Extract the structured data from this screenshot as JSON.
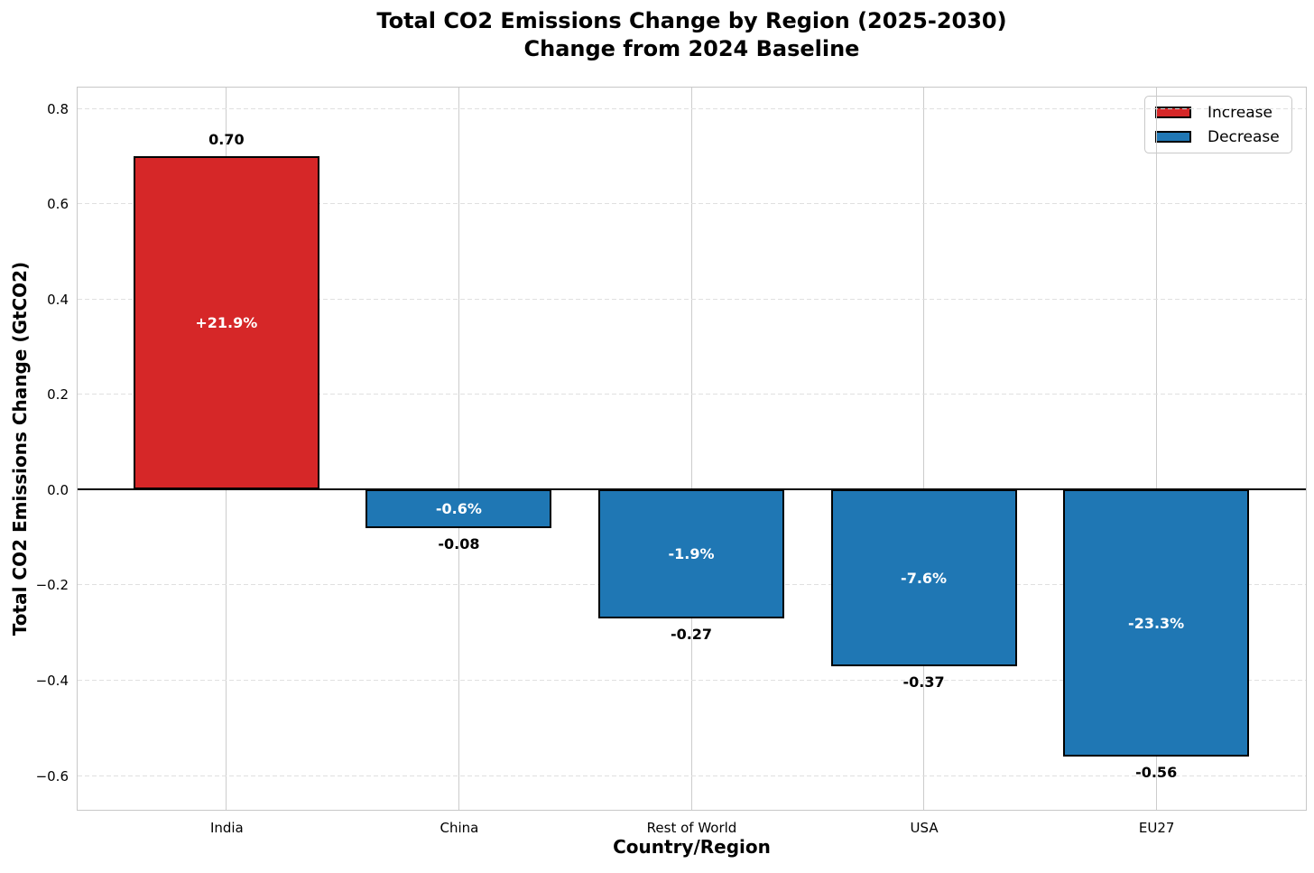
{
  "chart_data": {
    "type": "bar",
    "title_line1": "Total CO2 Emissions Change by Region (2025-2030)",
    "title_line2": "Change from 2024 Baseline",
    "xlabel": "Country/Region",
    "ylabel": "Total CO2 Emissions Change (GtCO2)",
    "categories": [
      "India",
      "China",
      "Rest of World",
      "USA",
      "EU27"
    ],
    "values": [
      0.7,
      -0.08,
      -0.27,
      -0.37,
      -0.56
    ],
    "value_labels": [
      "0.70",
      "-0.08",
      "-0.27",
      "-0.37",
      "-0.56"
    ],
    "pct_labels": [
      "+21.9%",
      "-0.6%",
      "-1.9%",
      "-7.6%",
      "-23.3%"
    ],
    "bar_colors": [
      "#d62728",
      "#1f77b4",
      "#1f77b4",
      "#1f77b4",
      "#1f77b4"
    ],
    "yticks": [
      0.8,
      0.6,
      0.4,
      0.2,
      0.0,
      -0.2,
      -0.4,
      -0.6
    ],
    "ytick_labels": [
      "0.8",
      "0.6",
      "0.4",
      "0.2",
      "0.0",
      "−0.2",
      "−0.4",
      "−0.6"
    ],
    "ylim": [
      -0.67,
      0.844
    ],
    "xlim": [
      -0.64,
      4.64
    ],
    "bar_width": 0.8,
    "grid": true,
    "legend_position": "upper right",
    "legend": [
      {
        "label": "Increase",
        "color": "#d62728"
      },
      {
        "label": "Decrease",
        "color": "#1f77b4"
      }
    ],
    "colors": {
      "increase": "#d62728",
      "decrease": "#1f77b4",
      "bar_edge": "#000000",
      "zero_line": "#000000",
      "grid_vertical": "#cccccc",
      "grid_horizontal": "#e0e0e0",
      "spine": "#c8c8c8",
      "pct_label_text": "#ffffff"
    }
  }
}
